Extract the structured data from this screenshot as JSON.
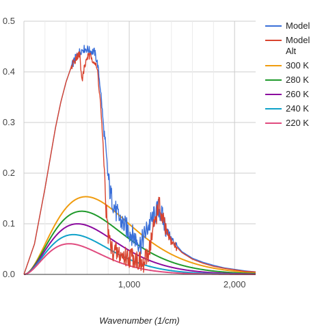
{
  "chart_data": {
    "type": "line",
    "xlabel": "Wavenumber (1/cm)",
    "ylabel": "",
    "xlim": [
      0,
      2200
    ],
    "ylim": [
      0,
      0.5
    ],
    "x_ticks": [
      1000,
      2000
    ],
    "x_tick_labels": [
      "1,000",
      "2,000"
    ],
    "y_ticks": [
      0,
      0.1,
      0.2,
      0.3,
      0.4,
      0.5
    ],
    "y_tick_labels": [
      "0.0",
      "0.1",
      "0.2",
      "0.3",
      "0.4",
      "0.5"
    ],
    "grid": true,
    "legend_position": "right",
    "series": [
      {
        "name": "Model",
        "color": "#3a6fd8",
        "points": [
          [
            0,
            0
          ],
          [
            100,
            0.06
          ],
          [
            200,
            0.17
          ],
          [
            300,
            0.29
          ],
          [
            350,
            0.34
          ],
          [
            400,
            0.38
          ],
          [
            450,
            0.41
          ],
          [
            500,
            0.432
          ],
          [
            530,
            0.44
          ],
          [
            560,
            0.445
          ],
          [
            600,
            0.445
          ],
          [
            640,
            0.44
          ],
          [
            670,
            0.44
          ],
          [
            700,
            0.415
          ],
          [
            730,
            0.36
          ],
          [
            760,
            0.28
          ],
          [
            790,
            0.21
          ],
          [
            820,
            0.16
          ],
          [
            850,
            0.14
          ],
          [
            880,
            0.12
          ],
          [
            920,
            0.105
          ],
          [
            960,
            0.095
          ],
          [
            1000,
            0.085
          ],
          [
            1040,
            0.075
          ],
          [
            1080,
            0.065
          ],
          [
            1110,
            0.06
          ],
          [
            1150,
            0.08
          ],
          [
            1180,
            0.095
          ],
          [
            1210,
            0.105
          ],
          [
            1250,
            0.12
          ],
          [
            1280,
            0.13
          ],
          [
            1310,
            0.115
          ],
          [
            1350,
            0.09
          ],
          [
            1400,
            0.07
          ],
          [
            1500,
            0.045
          ],
          [
            1600,
            0.032
          ],
          [
            1700,
            0.024
          ],
          [
            1800,
            0.018
          ],
          [
            1900,
            0.013
          ],
          [
            2000,
            0.01
          ],
          [
            2100,
            0.007
          ],
          [
            2200,
            0.005
          ]
        ]
      },
      {
        "name": "Model Alt",
        "color": "#d8432e",
        "points": [
          [
            0,
            0
          ],
          [
            100,
            0.06
          ],
          [
            200,
            0.17
          ],
          [
            300,
            0.29
          ],
          [
            350,
            0.34
          ],
          [
            400,
            0.38
          ],
          [
            450,
            0.41
          ],
          [
            500,
            0.43
          ],
          [
            530,
            0.435
          ],
          [
            550,
            0.38
          ],
          [
            565,
            0.4
          ],
          [
            600,
            0.43
          ],
          [
            640,
            0.43
          ],
          [
            670,
            0.42
          ],
          [
            700,
            0.4
          ],
          [
            730,
            0.33
          ],
          [
            760,
            0.22
          ],
          [
            780,
            0.13
          ],
          [
            800,
            0.08
          ],
          [
            830,
            0.05
          ],
          [
            860,
            0.045
          ],
          [
            900,
            0.04
          ],
          [
            950,
            0.035
          ],
          [
            1000,
            0.035
          ],
          [
            1050,
            0.035
          ],
          [
            1100,
            0.025
          ],
          [
            1130,
            0.015
          ],
          [
            1160,
            0.03
          ],
          [
            1200,
            0.06
          ],
          [
            1240,
            0.1
          ],
          [
            1280,
            0.14
          ],
          [
            1310,
            0.11
          ],
          [
            1350,
            0.085
          ],
          [
            1400,
            0.065
          ],
          [
            1500,
            0.043
          ],
          [
            1600,
            0.03
          ],
          [
            1700,
            0.022
          ],
          [
            1800,
            0.016
          ],
          [
            1900,
            0.012
          ],
          [
            2000,
            0.009
          ],
          [
            2100,
            0.006
          ],
          [
            2200,
            0.005
          ]
        ]
      },
      {
        "name": "300 K",
        "color": "#f09c0e",
        "temperature": 300
      },
      {
        "name": "280 K",
        "color": "#1f9a2b",
        "temperature": 280
      },
      {
        "name": "260 K",
        "color": "#8b0a9e",
        "temperature": 260
      },
      {
        "name": "240 K",
        "color": "#0ea1c9",
        "temperature": 240
      },
      {
        "name": "220 K",
        "color": "#e04a7e",
        "temperature": 220
      }
    ]
  }
}
